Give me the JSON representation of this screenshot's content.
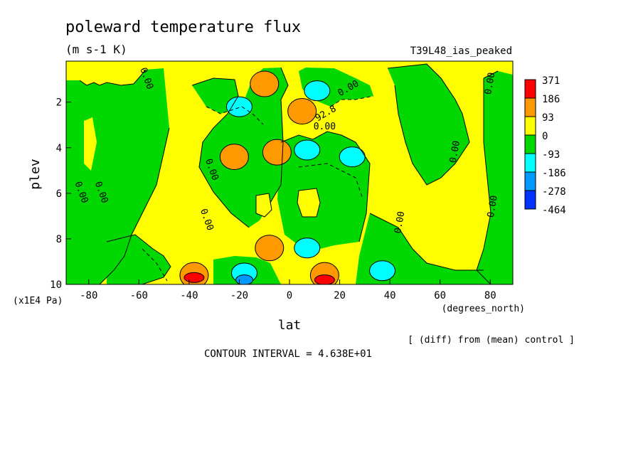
{
  "chart_data": {
    "type": "heatmap",
    "title": "poleward temperature flux",
    "units": "(m s-1 K)",
    "run_label": "T39L48_ias_peaked",
    "xlabel": "lat",
    "x_units": "(degrees_north)",
    "ylabel": "plev",
    "y_units": "(x1E4 Pa)",
    "x_ticks": [
      "-80",
      "-60",
      "-40",
      "-20",
      "0",
      "20",
      "40",
      "60",
      "80"
    ],
    "x_tick_values": [
      -80,
      -60,
      -40,
      -20,
      0,
      20,
      40,
      60,
      80
    ],
    "y_ticks": [
      "2",
      "4",
      "6",
      "8",
      "10"
    ],
    "y_tick_values": [
      2,
      4,
      6,
      8,
      10
    ],
    "xlim": [
      -89,
      89
    ],
    "ylim": [
      10,
      0.2
    ],
    "colorbar": {
      "labels": [
        "371",
        "186",
        "93",
        "0",
        "-93",
        "-186",
        "-278",
        "-464"
      ],
      "colors": [
        "#ff0000",
        "#ff9900",
        "#ffff00",
        "#00d800",
        "#00ffff",
        "#0099ff",
        "#0033ff"
      ]
    },
    "contour_labels": [
      "0.00",
      "92.8"
    ],
    "note": "[ (diff) from (mean) control ]",
    "contour_interval": "CONTOUR INTERVAL = 4.638E+01",
    "background_color": "#ffff00",
    "features": [
      {
        "lat": -10,
        "plev": 1.1,
        "level": 3
      },
      {
        "lat": -10,
        "plev": 1.2,
        "level": 2
      },
      {
        "lat": -22,
        "plev": 4.4,
        "level": 2
      },
      {
        "lat": -38,
        "plev": 9.6,
        "level": 2
      },
      {
        "lat": -38,
        "plev": 9.7,
        "level": 3
      },
      {
        "lat": 14,
        "plev": 9.6,
        "level": 2
      },
      {
        "lat": 14,
        "plev": 9.8,
        "level": 3
      },
      {
        "lat": 5,
        "plev": 2.4,
        "level": 2
      },
      {
        "lat": -8,
        "plev": 8.4,
        "level": 2
      },
      {
        "lat": -5,
        "plev": 4.2,
        "level": 2
      },
      {
        "lat": -20,
        "plev": 2.2,
        "level": -1
      },
      {
        "lat": 11,
        "plev": 1.5,
        "level": -1
      },
      {
        "lat": 7,
        "plev": 4.1,
        "level": -1
      },
      {
        "lat": 25,
        "plev": 4.4,
        "level": -1
      },
      {
        "lat": 7,
        "plev": 8.4,
        "level": -1
      },
      {
        "lat": -18,
        "plev": 9.5,
        "level": -1
      },
      {
        "lat": -18,
        "plev": 9.8,
        "level": -2
      },
      {
        "lat": 37,
        "plev": 9.4,
        "level": -1
      }
    ]
  }
}
